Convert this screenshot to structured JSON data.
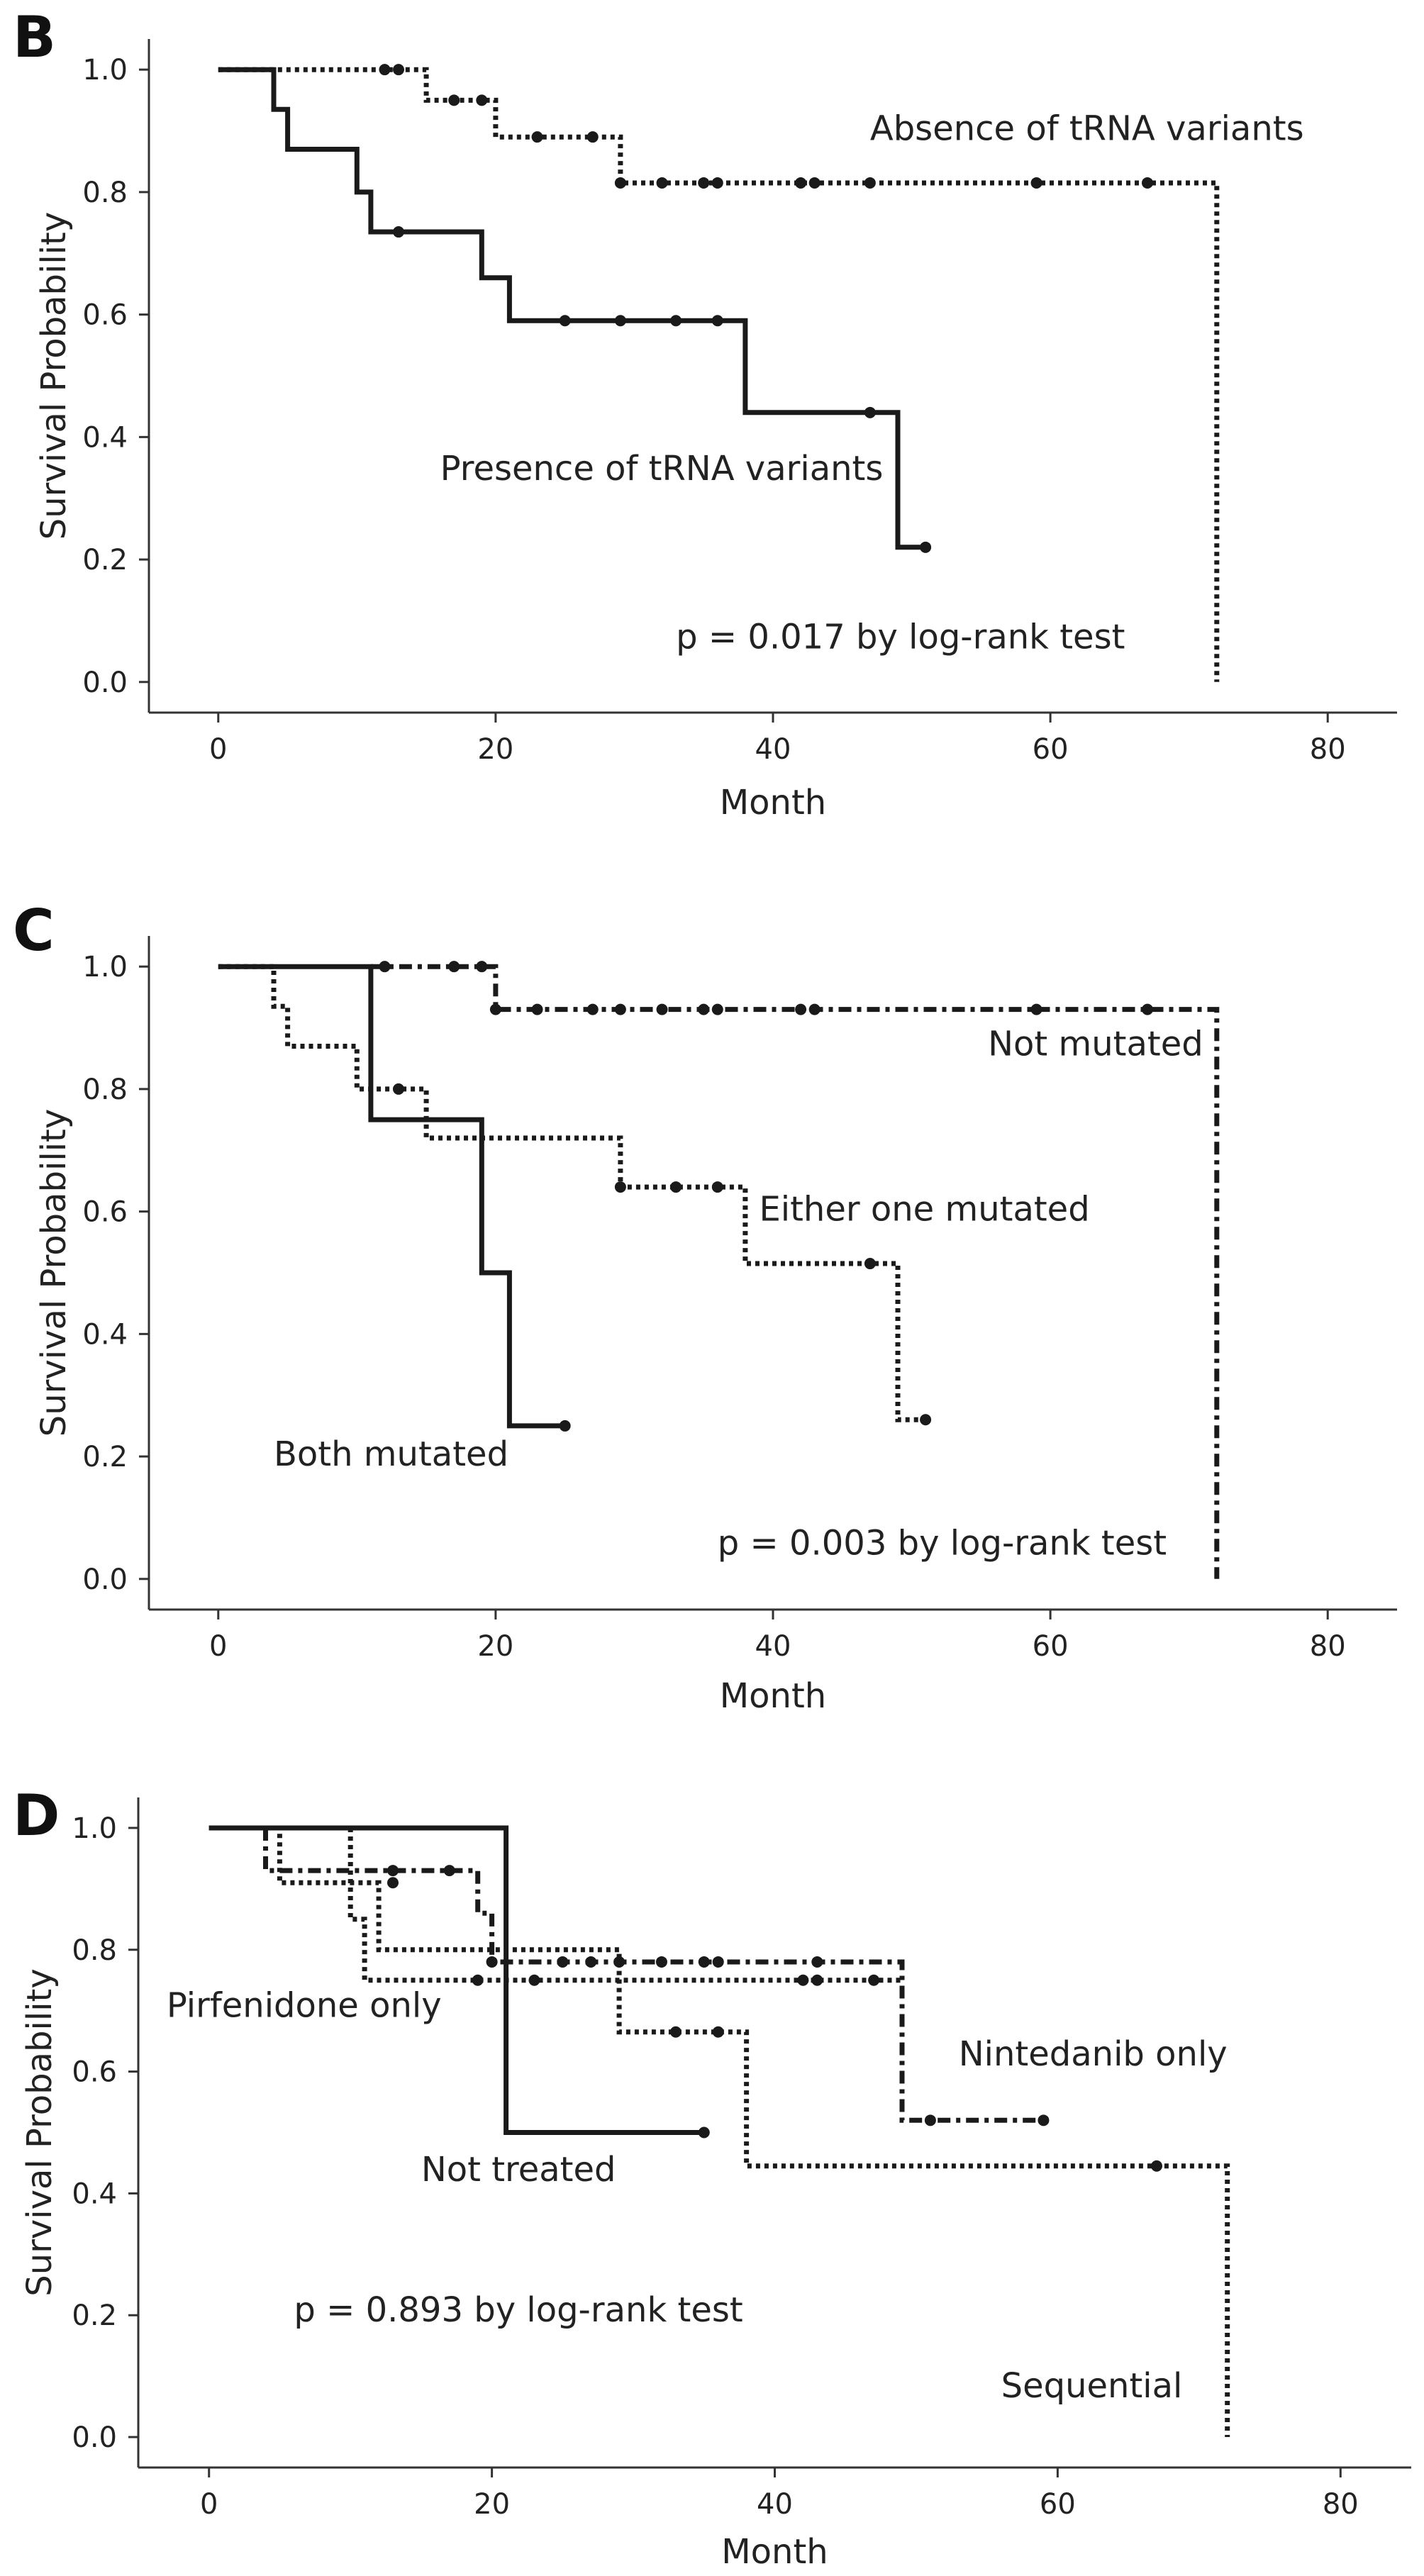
{
  "chart_data": [
    {
      "panel": "B",
      "type": "line",
      "subtype": "kaplan-meier",
      "xlabel": "Month",
      "ylabel": "Survival Probability",
      "xlim": [
        -5,
        85
      ],
      "ylim": [
        -0.05,
        1.05
      ],
      "xticks": [
        "0",
        "20",
        "40",
        "60",
        "80"
      ],
      "yticks": [
        "0.0",
        "0.2",
        "0.4",
        "0.6",
        "0.8",
        "1.0"
      ],
      "series": [
        {
          "name": "Absence of tRNA variants",
          "style": "dotted",
          "steps": [
            [
              0,
              1.0
            ],
            [
              15,
              1.0
            ],
            [
              15,
              0.95
            ],
            [
              20,
              0.95
            ],
            [
              20,
              0.89
            ],
            [
              29,
              0.89
            ],
            [
              29,
              0.815
            ],
            [
              72,
              0.815
            ],
            [
              72,
              0.0
            ]
          ],
          "censored": [
            [
              12,
              1.0
            ],
            [
              13,
              1.0
            ],
            [
              17,
              0.95
            ],
            [
              19,
              0.95
            ],
            [
              23,
              0.89
            ],
            [
              27,
              0.89
            ],
            [
              29,
              0.815
            ],
            [
              32,
              0.815
            ],
            [
              35,
              0.815
            ],
            [
              36,
              0.815
            ],
            [
              42,
              0.815
            ],
            [
              43,
              0.815
            ],
            [
              47,
              0.815
            ],
            [
              59,
              0.815
            ],
            [
              67,
              0.815
            ]
          ]
        },
        {
          "name": "Presence of tRNA variants",
          "style": "solid",
          "steps": [
            [
              0,
              1.0
            ],
            [
              4,
              1.0
            ],
            [
              4,
              0.935
            ],
            [
              5,
              0.935
            ],
            [
              5,
              0.87
            ],
            [
              10,
              0.87
            ],
            [
              10,
              0.8
            ],
            [
              11,
              0.8
            ],
            [
              11,
              0.735
            ],
            [
              19,
              0.735
            ],
            [
              19,
              0.66
            ],
            [
              21,
              0.66
            ],
            [
              21,
              0.59
            ],
            [
              38,
              0.59
            ],
            [
              38,
              0.44
            ],
            [
              49,
              0.44
            ],
            [
              49,
              0.22
            ],
            [
              51,
              0.22
            ]
          ],
          "censored": [
            [
              13,
              0.735
            ],
            [
              25,
              0.59
            ],
            [
              29,
              0.59
            ],
            [
              33,
              0.59
            ],
            [
              36,
              0.59
            ],
            [
              47,
              0.44
            ],
            [
              51,
              0.22
            ]
          ]
        }
      ],
      "labels": [
        {
          "text": "Absence of tRNA variants",
          "x": 47,
          "y": 0.885
        },
        {
          "text": "Presence of tRNA variants",
          "x": 16,
          "y": 0.33
        },
        {
          "text": "p = 0.017 by log-rank test",
          "x": 33,
          "y": 0.055
        }
      ]
    },
    {
      "panel": "C",
      "type": "line",
      "subtype": "kaplan-meier",
      "xlabel": "Month",
      "ylabel": "Survival Probability",
      "xlim": [
        -5,
        85
      ],
      "ylim": [
        -0.05,
        1.05
      ],
      "xticks": [
        "0",
        "20",
        "40",
        "60",
        "80"
      ],
      "yticks": [
        "0.0",
        "0.2",
        "0.4",
        "0.6",
        "0.8",
        "1.0"
      ],
      "series": [
        {
          "name": "Not mutated",
          "style": "dashdot",
          "steps": [
            [
              11,
              1.0
            ],
            [
              20,
              1.0
            ],
            [
              20,
              0.93
            ],
            [
              72,
              0.93
            ],
            [
              72,
              0.0
            ]
          ],
          "censored": [
            [
              12,
              1.0
            ],
            [
              17,
              1.0
            ],
            [
              19,
              1.0
            ],
            [
              20,
              0.93
            ],
            [
              23,
              0.93
            ],
            [
              27,
              0.93
            ],
            [
              29,
              0.93
            ],
            [
              32,
              0.93
            ],
            [
              35,
              0.93
            ],
            [
              36,
              0.93
            ],
            [
              42,
              0.93
            ],
            [
              43,
              0.93
            ],
            [
              59,
              0.93
            ],
            [
              67,
              0.93
            ]
          ]
        },
        {
          "name": "Either one mutated",
          "style": "dotted",
          "steps": [
            [
              0,
              1.0
            ],
            [
              4,
              1.0
            ],
            [
              4,
              0.935
            ],
            [
              5,
              0.935
            ],
            [
              5,
              0.87
            ],
            [
              10,
              0.87
            ],
            [
              10,
              0.8
            ],
            [
              15,
              0.8
            ],
            [
              15,
              0.72
            ],
            [
              29,
              0.72
            ],
            [
              29,
              0.64
            ],
            [
              38,
              0.64
            ],
            [
              38,
              0.515
            ],
            [
              49,
              0.515
            ],
            [
              49,
              0.26
            ],
            [
              51,
              0.26
            ]
          ],
          "censored": [
            [
              13,
              0.8
            ],
            [
              29,
              0.64
            ],
            [
              33,
              0.64
            ],
            [
              36,
              0.64
            ],
            [
              47,
              0.515
            ],
            [
              51,
              0.26
            ]
          ]
        },
        {
          "name": "Both mutated",
          "style": "solid",
          "steps": [
            [
              0,
              1.0
            ],
            [
              11,
              1.0
            ],
            [
              11,
              0.75
            ],
            [
              19,
              0.75
            ],
            [
              19,
              0.5
            ],
            [
              21,
              0.5
            ],
            [
              21,
              0.25
            ],
            [
              25,
              0.25
            ]
          ],
          "censored": [
            [
              25,
              0.25
            ]
          ]
        }
      ],
      "labels": [
        {
          "text": "Not mutated",
          "x": 55.5,
          "y": 0.855
        },
        {
          "text": "Either one mutated",
          "x": 39,
          "y": 0.585
        },
        {
          "text": "Both mutated",
          "x": 4,
          "y": 0.185
        },
        {
          "text": "p = 0.003 by log-rank test",
          "x": 36,
          "y": 0.04
        }
      ]
    },
    {
      "panel": "D",
      "type": "line",
      "subtype": "kaplan-meier",
      "xlabel": "Month",
      "ylabel": "Survival Probability",
      "xlim": [
        -5,
        85
      ],
      "ylim": [
        -0.05,
        1.05
      ],
      "xticks": [
        "0",
        "20",
        "40",
        "60",
        "80"
      ],
      "yticks": [
        "0.0",
        "0.2",
        "0.4",
        "0.6",
        "0.8",
        "1.0"
      ],
      "series": [
        {
          "name": "Not treated",
          "style": "solid",
          "steps": [
            [
              0,
              1.0
            ],
            [
              21,
              1.0
            ],
            [
              21,
              0.5
            ],
            [
              35,
              0.5
            ]
          ],
          "censored": [
            [
              35,
              0.5
            ]
          ]
        },
        {
          "name": "Sequential",
          "style": "dotted",
          "steps": [
            [
              0,
              1.0
            ],
            [
              5,
              1.0
            ],
            [
              5,
              0.91
            ],
            [
              12,
              0.91
            ],
            [
              12,
              0.8
            ],
            [
              29,
              0.8
            ],
            [
              29,
              0.665
            ],
            [
              38,
              0.665
            ],
            [
              38,
              0.445
            ],
            [
              72,
              0.445
            ],
            [
              72,
              0.0
            ]
          ],
          "censored": [
            [
              13,
              0.91
            ],
            [
              27,
              0.78
            ],
            [
              33,
              0.665
            ],
            [
              36,
              0.665
            ],
            [
              67,
              0.445
            ]
          ]
        },
        {
          "name": "Nintedanib only",
          "style": "dashdot",
          "steps": [
            [
              4,
              1.0
            ],
            [
              4,
              0.93
            ],
            [
              19,
              0.93
            ],
            [
              19,
              0.86
            ],
            [
              20,
              0.86
            ],
            [
              20,
              0.78
            ],
            [
              49,
              0.78
            ],
            [
              49,
              0.52
            ],
            [
              59,
              0.52
            ]
          ],
          "censored": [
            [
              13,
              0.93
            ],
            [
              17,
              0.93
            ],
            [
              20,
              0.78
            ],
            [
              25,
              0.78
            ],
            [
              29,
              0.78
            ],
            [
              32,
              0.78
            ],
            [
              35,
              0.78
            ],
            [
              36,
              0.78
            ],
            [
              43,
              0.78
            ],
            [
              51,
              0.52
            ],
            [
              59,
              0.52
            ]
          ]
        },
        {
          "name": "Pirfenidone only",
          "style": "dotted",
          "steps": [
            [
              10,
              1.0
            ],
            [
              10,
              0.85
            ],
            [
              11,
              0.85
            ],
            [
              11,
              0.75
            ],
            [
              49,
              0.75
            ]
          ],
          "censored": [
            [
              19,
              0.75
            ],
            [
              23,
              0.75
            ],
            [
              42,
              0.75
            ],
            [
              43,
              0.75
            ],
            [
              47,
              0.75
            ]
          ]
        }
      ],
      "labels": [
        {
          "text": "Pirfenidone only",
          "x": -3,
          "y": 0.69
        },
        {
          "text": "Not treated",
          "x": 15,
          "y": 0.42
        },
        {
          "text": "Nintedanib only",
          "x": 53,
          "y": 0.61
        },
        {
          "text": "p = 0.893 by log-rank test",
          "x": 6,
          "y": 0.19
        },
        {
          "text": "Sequential",
          "x": 56,
          "y": 0.065
        }
      ]
    }
  ]
}
